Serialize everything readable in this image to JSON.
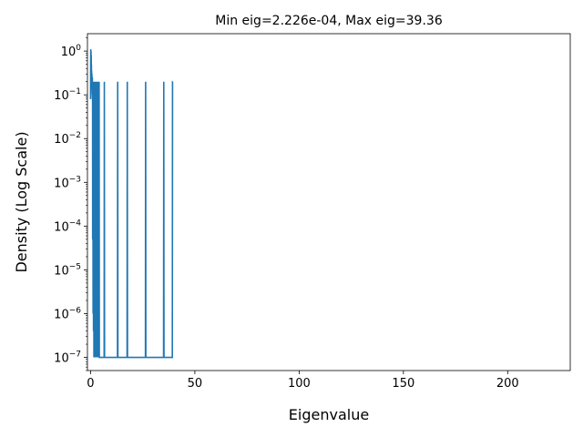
{
  "chart_data": {
    "type": "line",
    "title": "Min eig=2.226e-04, Max eig=39.36",
    "xlabel": "Eigenvalue",
    "ylabel": "Density (Log Scale)",
    "x_scale": "linear",
    "y_scale": "log",
    "xlim": [
      -1.5,
      230
    ],
    "ylim": [
      5e-08,
      2.5
    ],
    "x_ticks": [
      0,
      50,
      100,
      150,
      200
    ],
    "y_ticks": [
      {
        "base": "10",
        "exp": "0",
        "value": 1
      },
      {
        "base": "10",
        "exp": "−1",
        "value": 0.1
      },
      {
        "base": "10",
        "exp": "−2",
        "value": 0.01
      },
      {
        "base": "10",
        "exp": "−3",
        "value": 0.001
      },
      {
        "base": "10",
        "exp": "−4",
        "value": 0.0001
      },
      {
        "base": "10",
        "exp": "−5",
        "value": 1e-05
      },
      {
        "base": "10",
        "exp": "−6",
        "value": 1e-06
      },
      {
        "base": "10",
        "exp": "−7",
        "value": 1e-07
      }
    ],
    "grid": false,
    "legend": "none",
    "line_color": "#1f77b4",
    "series": [
      {
        "x": [
          0.0,
          0.05,
          0.1,
          0.15,
          0.2,
          0.25,
          0.3,
          0.35,
          0.4,
          0.45,
          0.5,
          0.55,
          0.6,
          0.65,
          0.7,
          0.8,
          0.85,
          0.9,
          0.95,
          1.0,
          1.1,
          1.2,
          1.3,
          1.4,
          1.5,
          1.6,
          1.7,
          1.8,
          1.9,
          2.0,
          2.05,
          2.1,
          2.2,
          2.3,
          2.4,
          2.45,
          2.5,
          2.55,
          2.6,
          2.7,
          2.75,
          2.8,
          2.85,
          2.9,
          3.0,
          3.05,
          3.1,
          3.15,
          3.2,
          3.3,
          3.35,
          3.4,
          3.45,
          3.5,
          3.6,
          3.65,
          3.7,
          3.75,
          3.8,
          3.9,
          3.95,
          4.0,
          4.1,
          4.2,
          4.3,
          6.5,
          6.6,
          6.7,
          12.9,
          13.0,
          13.1,
          17.5,
          17.6,
          17.7,
          26.3,
          26.4,
          26.5,
          35.0,
          35.1,
          35.2,
          39.2,
          39.3,
          39.4
        ],
        "y": [
          0.08,
          0.5,
          1.1,
          0.9,
          1.0,
          0.6,
          0.8,
          0.4,
          0.5,
          0.3,
          0.35,
          0.2,
          0.25,
          0.3,
          0.15,
          0.1,
          0.25,
          0.08,
          0.2,
          5e-05,
          0.2,
          1e-06,
          0.2,
          4e-07,
          0.2,
          1e-07,
          0.2,
          1e-07,
          0.2,
          1e-07,
          0.2,
          1e-07,
          0.2,
          1e-07,
          0.2,
          1e-07,
          0.2,
          1e-07,
          0.2,
          1e-07,
          0.2,
          1e-07,
          0.2,
          1e-07,
          0.2,
          1e-07,
          0.2,
          1e-07,
          0.2,
          1e-07,
          0.2,
          1e-07,
          0.2,
          1e-07,
          0.2,
          1e-07,
          0.2,
          1e-07,
          0.2,
          1e-07,
          0.2,
          1e-07,
          0.2,
          1e-07,
          1e-07,
          1e-07,
          0.2,
          1e-07,
          1e-07,
          0.2,
          1e-07,
          1e-07,
          0.2,
          1e-07,
          1e-07,
          0.2,
          1e-07,
          1e-07,
          0.2,
          1e-07,
          1e-07,
          0.2,
          0.2
        ]
      }
    ]
  }
}
